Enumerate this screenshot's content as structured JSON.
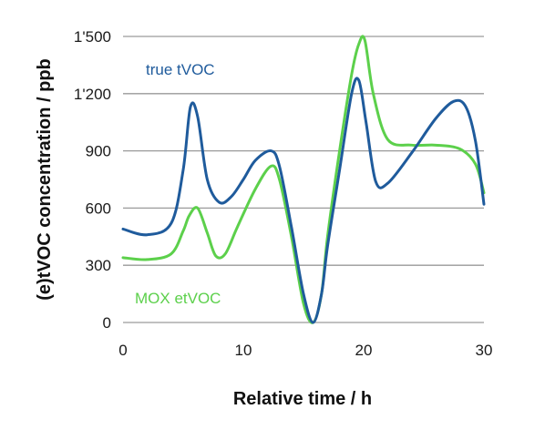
{
  "chart_data": {
    "type": "line",
    "xlabel": "Relative time / h",
    "ylabel": "(e)tVOC concentration / ppb",
    "xlim": [
      0,
      30
    ],
    "ylim": [
      0,
      1500
    ],
    "x_ticks": [
      0,
      10,
      20,
      30
    ],
    "x_tick_labels": [
      "0",
      "10",
      "20",
      "30"
    ],
    "y_ticks": [
      0,
      300,
      600,
      900,
      1200,
      1500
    ],
    "y_tick_labels": [
      "0",
      "300",
      "600",
      "900",
      "1'200",
      "1'500"
    ],
    "grid": "horizontal",
    "series": [
      {
        "name": "true tVOC",
        "color": "#1f5b9c",
        "x": [
          0,
          2,
          4,
          5,
          5.6,
          6.2,
          7,
          8,
          9,
          10,
          11,
          12.3,
          13,
          14,
          15,
          15.8,
          16.5,
          17,
          18,
          19,
          19.6,
          20.2,
          21,
          22,
          24,
          26,
          27.5,
          28.5,
          29.3,
          30
        ],
        "y": [
          490,
          460,
          520,
          800,
          1130,
          1080,
          750,
          630,
          660,
          750,
          850,
          900,
          820,
          500,
          150,
          0,
          150,
          400,
          800,
          1200,
          1270,
          1050,
          740,
          730,
          890,
          1070,
          1160,
          1130,
          950,
          620
        ]
      },
      {
        "name": "MOX etVOC",
        "color": "#5cd04b",
        "x": [
          0,
          2,
          4,
          5,
          5.5,
          6.2,
          7,
          7.7,
          8.5,
          9.5,
          11,
          12.3,
          13,
          14,
          15,
          15.8,
          16.5,
          17,
          18,
          19,
          19.6,
          20.1,
          20.8,
          22,
          24,
          26,
          28,
          29.3,
          30
        ],
        "y": [
          340,
          330,
          360,
          480,
          560,
          600,
          470,
          350,
          360,
          500,
          700,
          820,
          750,
          450,
          100,
          0,
          150,
          450,
          900,
          1300,
          1460,
          1480,
          1200,
          960,
          930,
          930,
          910,
          830,
          680
        ]
      }
    ]
  }
}
